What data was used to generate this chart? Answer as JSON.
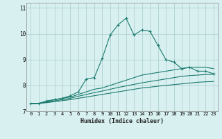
{
  "xlabel": "Humidex (Indice chaleur)",
  "ylabel": "",
  "x_values": [
    0,
    1,
    2,
    3,
    4,
    5,
    6,
    7,
    8,
    9,
    10,
    11,
    12,
    13,
    14,
    15,
    16,
    17,
    18,
    19,
    20,
    21,
    22,
    23
  ],
  "line1": [
    7.3,
    7.3,
    7.4,
    7.45,
    7.5,
    7.6,
    7.75,
    8.25,
    8.3,
    9.05,
    9.95,
    10.35,
    10.6,
    9.95,
    10.15,
    10.1,
    9.55,
    9.0,
    8.9,
    8.65,
    8.7,
    8.55,
    8.55,
    8.45
  ],
  "line2": [
    7.3,
    7.3,
    7.35,
    7.45,
    7.5,
    7.55,
    7.65,
    7.75,
    7.85,
    7.9,
    8.0,
    8.1,
    8.2,
    8.3,
    8.4,
    8.45,
    8.5,
    8.55,
    8.6,
    8.65,
    8.7,
    8.7,
    8.7,
    8.65
  ],
  "line3": [
    7.3,
    7.3,
    7.35,
    7.4,
    7.45,
    7.5,
    7.58,
    7.65,
    7.72,
    7.78,
    7.85,
    7.92,
    7.98,
    8.04,
    8.1,
    8.15,
    8.2,
    8.25,
    8.3,
    8.35,
    8.38,
    8.4,
    8.42,
    8.43
  ],
  "line4": [
    7.3,
    7.3,
    7.33,
    7.37,
    7.41,
    7.45,
    7.5,
    7.55,
    7.6,
    7.65,
    7.7,
    7.75,
    7.8,
    7.85,
    7.9,
    7.93,
    7.97,
    8.0,
    8.03,
    8.06,
    8.09,
    8.12,
    8.14,
    8.15
  ],
  "line_color": "#1a7a6e",
  "bg_color": "#d8f0f0",
  "grid_color": "#b0d0d0",
  "ylim": [
    7.0,
    11.2
  ],
  "xlim": [
    -0.5,
    23.5
  ],
  "yticks": [
    7,
    8,
    9,
    10,
    11
  ],
  "xticks": [
    0,
    1,
    2,
    3,
    4,
    5,
    6,
    7,
    8,
    9,
    10,
    11,
    12,
    13,
    14,
    15,
    16,
    17,
    18,
    19,
    20,
    21,
    22,
    23
  ]
}
